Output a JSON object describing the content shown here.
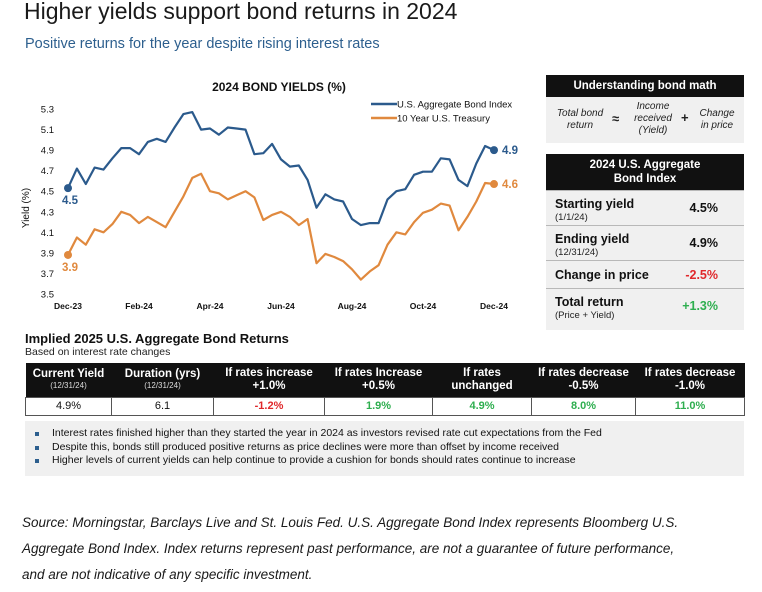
{
  "header": {
    "title": "Higher yields support bond returns in 2024",
    "subtitle": "Positive returns for the year despite rising interest rates"
  },
  "colors": {
    "navy": "#2b5a8c",
    "orange": "#e0893e",
    "red": "#e0282b",
    "green": "#2eae4f",
    "black": "#111111"
  },
  "chart_data": {
    "type": "line",
    "title": "2024 BOND YIELDS (%)",
    "ylabel": "Yield (%)",
    "ylim": [
      3.5,
      5.3
    ],
    "yticks": [
      "5.3",
      "5.1",
      "4.9",
      "4.7",
      "4.5",
      "4.3",
      "4.1",
      "3.9",
      "3.7",
      "3.5"
    ],
    "xticks": [
      "Dec-23",
      "Feb-24",
      "Apr-24",
      "Jun-24",
      "Aug-24",
      "Oct-24",
      "Dec-24"
    ],
    "legend_position": "top-right",
    "start_labels": [
      "4.5",
      "3.9"
    ],
    "end_labels": [
      "4.9",
      "4.6"
    ],
    "series": [
      {
        "name": "U.S. Aggregate Bond Index",
        "color": "#2b5a8c",
        "values": [
          4.53,
          4.72,
          4.57,
          4.73,
          4.71,
          4.82,
          4.92,
          4.92,
          4.86,
          4.98,
          5.01,
          4.98,
          5.12,
          5.25,
          5.27,
          5.1,
          5.11,
          5.05,
          5.12,
          5.11,
          5.1,
          4.86,
          4.87,
          4.96,
          4.81,
          4.74,
          4.75,
          4.61,
          4.34,
          4.47,
          4.42,
          4.4,
          4.23,
          4.17,
          4.19,
          4.19,
          4.42,
          4.5,
          4.52,
          4.66,
          4.69,
          4.69,
          4.82,
          4.81,
          4.61,
          4.55,
          4.77,
          4.94,
          4.9
        ]
      },
      {
        "name": "10 Year U.S. Treasury",
        "color": "#e0893e",
        "values": [
          3.88,
          4.05,
          3.98,
          4.13,
          4.1,
          4.18,
          4.3,
          4.27,
          4.19,
          4.25,
          4.2,
          4.15,
          4.3,
          4.45,
          4.63,
          4.67,
          4.5,
          4.48,
          4.42,
          4.46,
          4.5,
          4.44,
          4.22,
          4.27,
          4.3,
          4.25,
          4.17,
          4.23,
          3.8,
          3.89,
          3.86,
          3.82,
          3.74,
          3.64,
          3.72,
          3.78,
          3.98,
          4.1,
          4.08,
          4.2,
          4.29,
          4.32,
          4.38,
          4.36,
          4.12,
          4.25,
          4.4,
          4.58,
          4.57
        ]
      }
    ]
  },
  "bond_math": {
    "title": "Understanding bond math",
    "total_bond": "Total bond",
    "return": "return",
    "approx": "≈",
    "income": "Income",
    "received": "received",
    "yield": "(Yield)",
    "plus": "+",
    "change": "Change",
    "in_price": "in price"
  },
  "aggregate": {
    "title_line1": "2024 U.S. Aggregate",
    "title_line2": "Bond Index",
    "rows": [
      {
        "label": "Starting yield",
        "sub": "(1/1/24)",
        "value": "4.5%"
      },
      {
        "label": "Ending yield",
        "sub": "(12/31/24)",
        "value": "4.9%"
      },
      {
        "label": "Change in price",
        "sub": "",
        "value": "-2.5%"
      },
      {
        "label": "Total return",
        "sub": "(Price + Yield)",
        "value": "+1.3%"
      }
    ]
  },
  "implied": {
    "title": "Implied 2025 U.S. Aggregate Bond Returns",
    "subtitle": "Based on interest rate changes",
    "headers": [
      {
        "l1": "Current Yield",
        "l2": "(12/31/24)"
      },
      {
        "l1": "Duration (yrs)",
        "l2": "(12/31/24)"
      },
      {
        "l1": "If rates increase",
        "l2": "+1.0%"
      },
      {
        "l1": "If rates Increase",
        "l2": "+0.5%"
      },
      {
        "l1": "If rates",
        "l2": "unchanged"
      },
      {
        "l1": "If rates decrease",
        "l2": "-0.5%"
      },
      {
        "l1": "If rates decrease",
        "l2": "-1.0%"
      }
    ],
    "values": [
      "4.9%",
      "6.1",
      "-1.2%",
      "1.9%",
      "4.9%",
      "8.0%",
      "11.0%"
    ]
  },
  "notes": [
    "Interest rates finished higher than they started the year in 2024 as investors revised rate cut expectations from the Fed",
    "Despite this, bonds still produced positive returns as price declines were more than offset by income received",
    "Higher levels of current yields can help continue to provide a cushion for bonds should rates continue to increase"
  ],
  "source": {
    "line1": "Source: Morningstar, Barclays Live and St. Louis Fed. U.S. Aggregate Bond Index represents Bloomberg U.S.",
    "line2": "Aggregate Bond Index. Index returns represent past performance, are not a guarantee of future performance,",
    "line3": "and are not indicative of any specific investment."
  }
}
